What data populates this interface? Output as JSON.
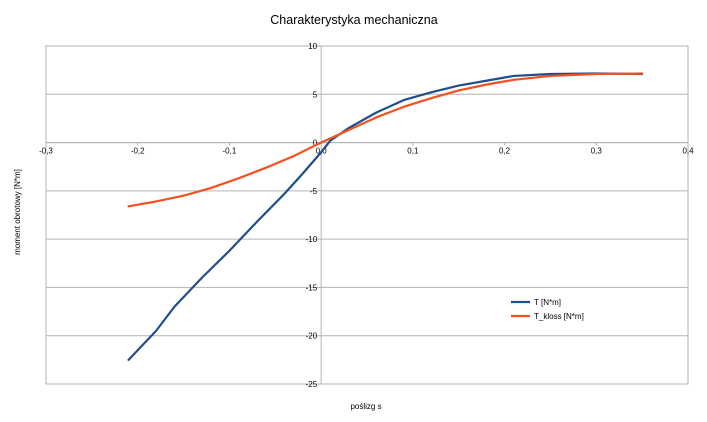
{
  "chart_data": {
    "type": "line",
    "title": "Charakterystyka mechaniczna",
    "xlabel": "poślizg s",
    "ylabel": "moment obrotowy [N*m]",
    "xlim": [
      -0.3,
      0.4
    ],
    "ylim": [
      -25,
      10
    ],
    "x_ticks": [
      "-0,3",
      "-0,2",
      "-0,1",
      "0,0",
      "0,1",
      "0,2",
      "0,3",
      "0,4"
    ],
    "y_ticks": [
      "10",
      "5",
      "0",
      "-5",
      "-10",
      "-15",
      "-20",
      "-25"
    ],
    "grid": "horizontal",
    "legend_position": "right",
    "series": [
      {
        "name": "T [N*m]",
        "color": "#1f4e8c",
        "points": [
          [
            -0.21,
            -22.5
          ],
          [
            -0.18,
            -19.5
          ],
          [
            -0.16,
            -17.0
          ],
          [
            -0.13,
            -14.0
          ],
          [
            -0.1,
            -11.2
          ],
          [
            -0.07,
            -8.2
          ],
          [
            -0.04,
            -5.3
          ],
          [
            -0.02,
            -3.2
          ],
          [
            0.0,
            -1.0
          ],
          [
            0.01,
            0.2
          ],
          [
            0.03,
            1.5
          ],
          [
            0.06,
            3.1
          ],
          [
            0.09,
            4.4
          ],
          [
            0.12,
            5.2
          ],
          [
            0.15,
            5.9
          ],
          [
            0.18,
            6.4
          ],
          [
            0.21,
            6.9
          ],
          [
            0.25,
            7.1
          ],
          [
            0.3,
            7.15
          ],
          [
            0.35,
            7.1
          ]
        ]
      },
      {
        "name": "T_kloss [N*m]",
        "color": "#f4511e",
        "points": [
          [
            -0.21,
            -6.6
          ],
          [
            -0.18,
            -6.1
          ],
          [
            -0.15,
            -5.5
          ],
          [
            -0.12,
            -4.7
          ],
          [
            -0.09,
            -3.7
          ],
          [
            -0.06,
            -2.6
          ],
          [
            -0.03,
            -1.4
          ],
          [
            0.0,
            0.0
          ],
          [
            0.03,
            1.3
          ],
          [
            0.06,
            2.6
          ],
          [
            0.09,
            3.7
          ],
          [
            0.12,
            4.6
          ],
          [
            0.15,
            5.4
          ],
          [
            0.18,
            6.0
          ],
          [
            0.21,
            6.5
          ],
          [
            0.25,
            6.9
          ],
          [
            0.3,
            7.1
          ],
          [
            0.35,
            7.15
          ]
        ]
      }
    ]
  }
}
